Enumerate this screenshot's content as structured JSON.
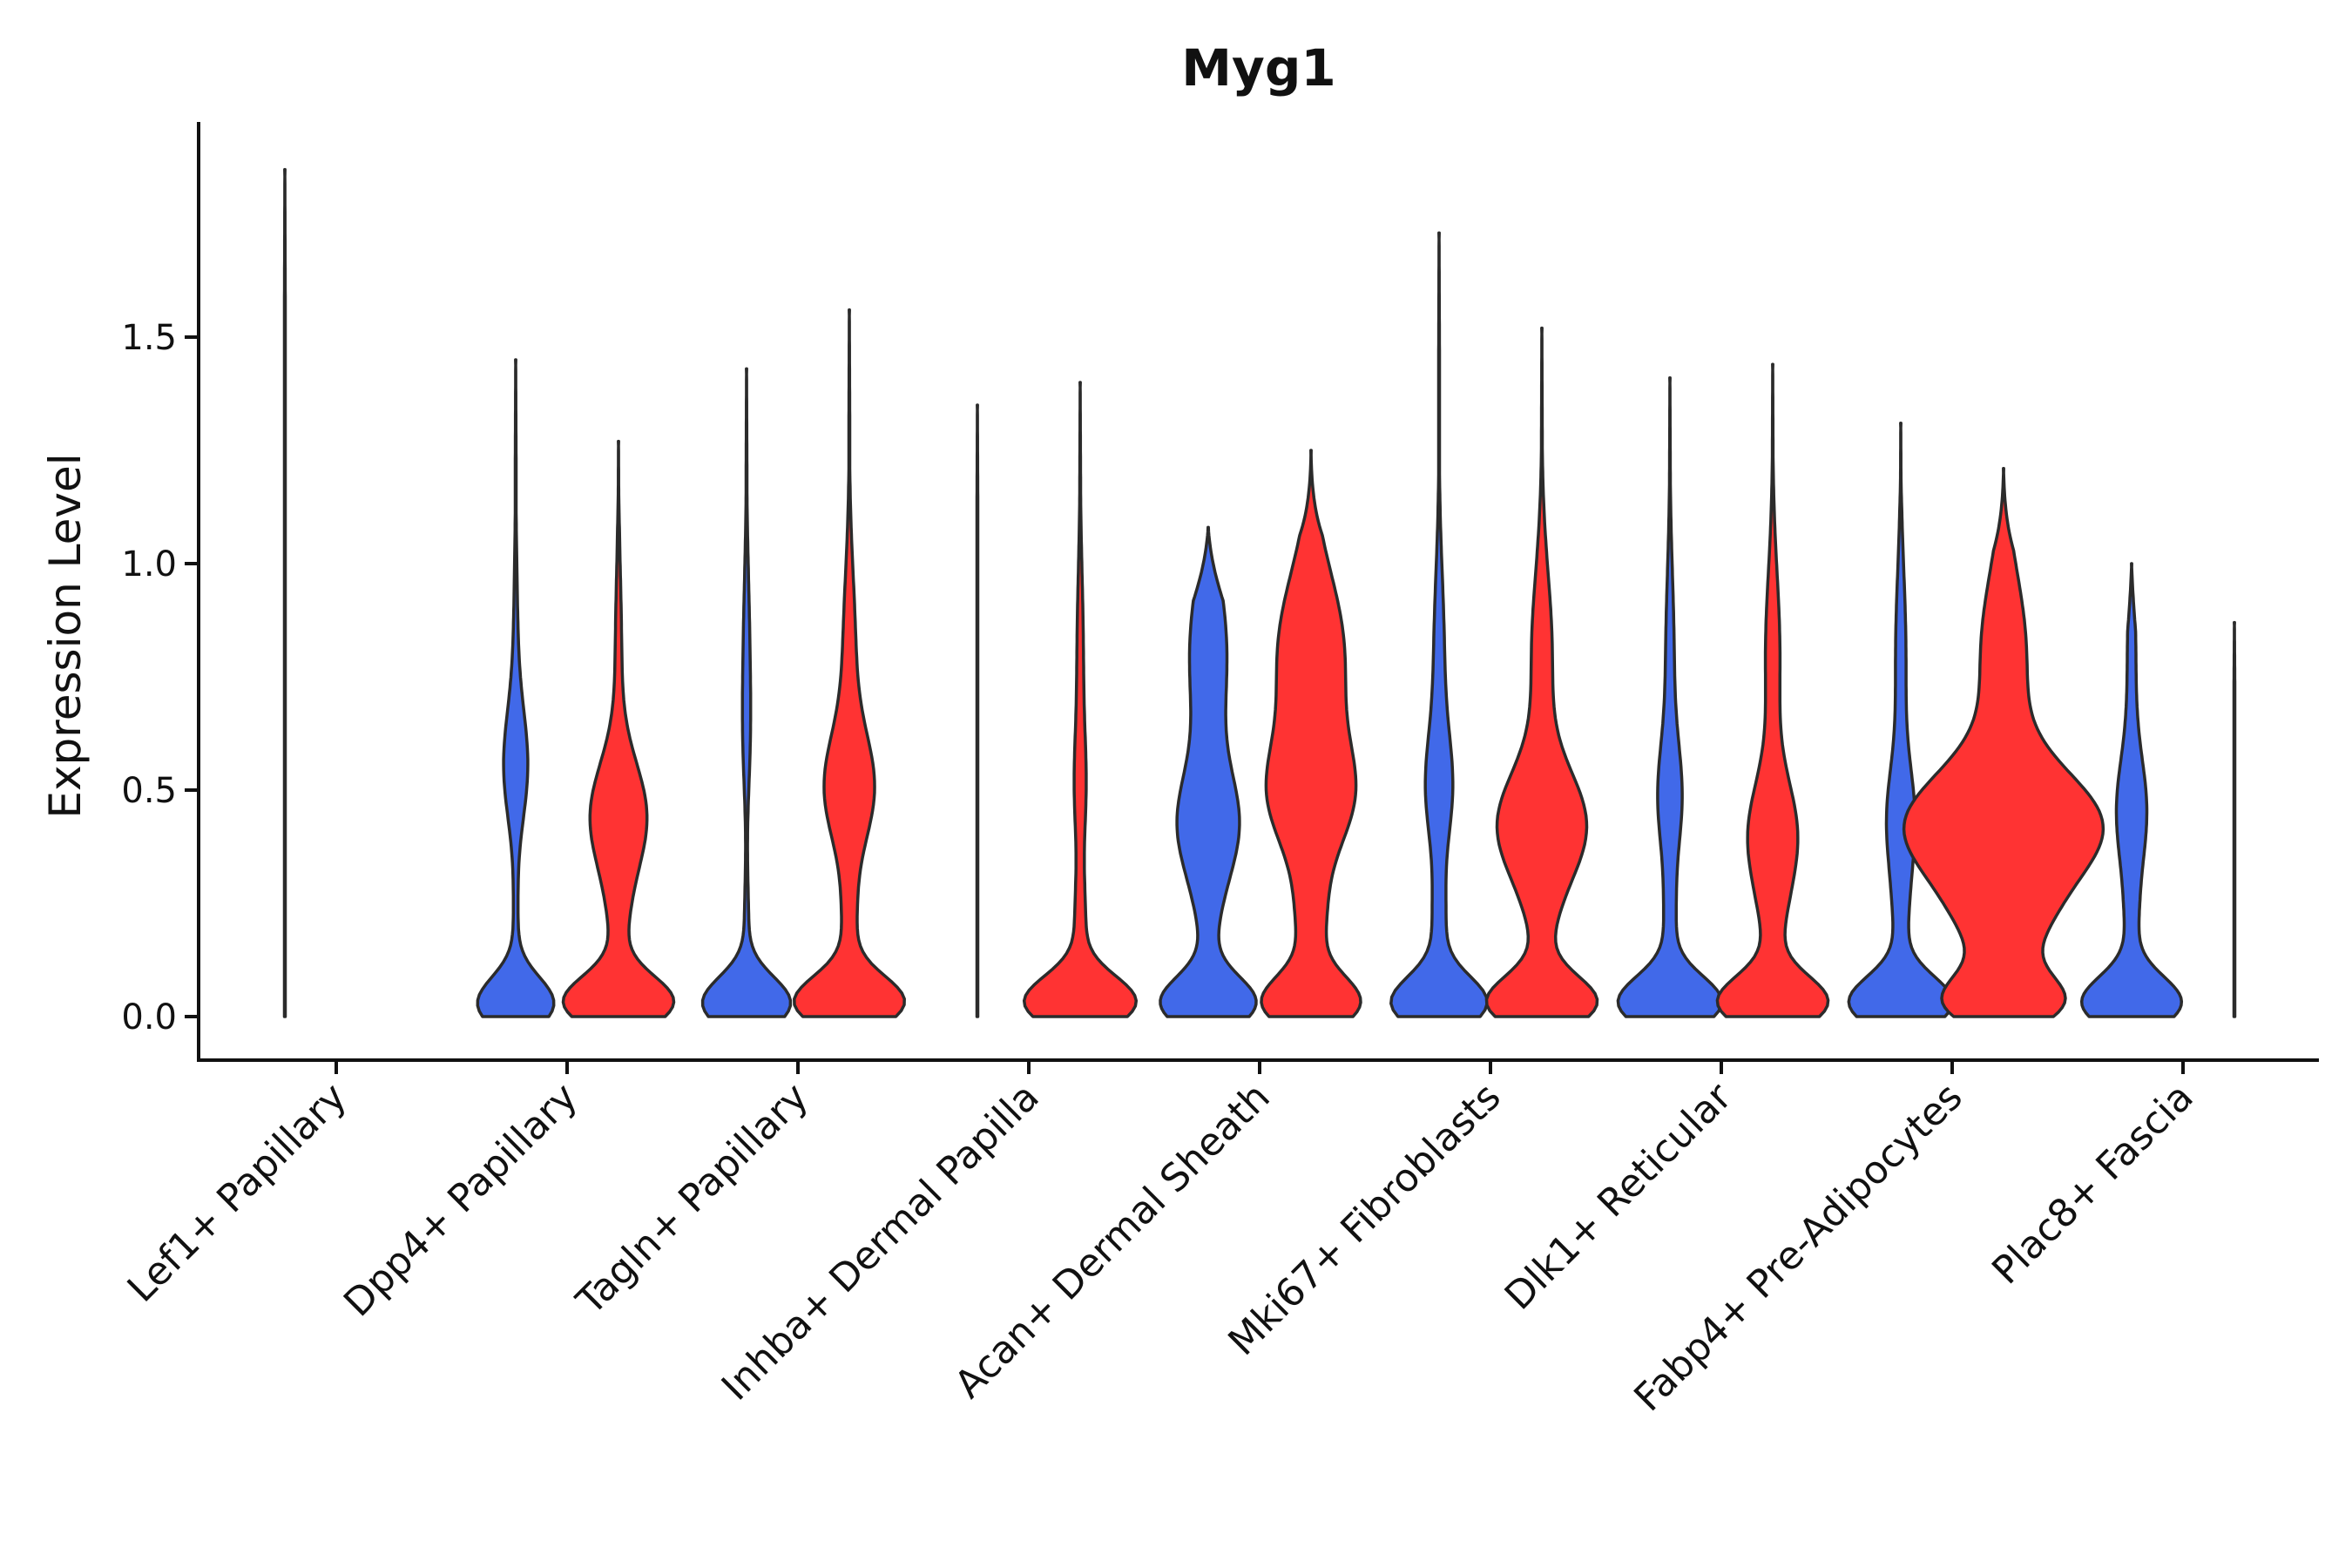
{
  "chart_data": {
    "type": "violin",
    "title": "Myg1",
    "xlabel": "",
    "ylabel": "Expression Level",
    "ylim": [
      -0.09,
      1.97
    ],
    "yticks": [
      "0.0",
      "0.5",
      "1.0",
      "1.5"
    ],
    "ytick_values": [
      0,
      0.5,
      1.0,
      1.5
    ],
    "colors": {
      "blue": "#4169E9",
      "red": "#FF3333",
      "outline": "#2b2b2b"
    },
    "categories": [
      "Lef1+ Papillary",
      "Dpp4+ Papillary",
      "Tagln+ Papillary",
      "Inhba+ Dermal Papilla",
      "Acan+ Dermal Sheath",
      "Mki67+ Fibroblasts",
      "Dlk1+ Reticular",
      "Fabp4+ Pre-Adipocytes",
      "Plac8+ Fascia"
    ],
    "series": [
      {
        "name": "blue",
        "color": "#4169E9",
        "violins": [
          {
            "max": 1.87,
            "base": 0.003,
            "low": 0,
            "mode": 0,
            "mid": 0,
            "mid_y": 0.5,
            "upper": 0
          },
          {
            "max": 1.45,
            "base": 0.09,
            "low": 0.3,
            "mode": 0.02,
            "mid": 0.11,
            "mid_y": 0.55,
            "upper": 0.02
          },
          {
            "max": 1.43,
            "base": 0.1,
            "low": 0.35,
            "mode": 0.02,
            "mid": 0.02,
            "mid_y": 0.6,
            "upper": 0.03
          },
          {
            "max": 1.35,
            "base": 0.003,
            "low": 0,
            "mode": 0,
            "mid": 0,
            "mid_y": 0.5,
            "upper": 0
          },
          {
            "max": 1.08,
            "base": 0.1,
            "low": 0.38,
            "mode": 0.05,
            "mid": 0.28,
            "mid_y": 0.42,
            "upper": 0.18
          },
          {
            "max": 1.73,
            "base": 0.1,
            "low": 0.38,
            "mode": 0.06,
            "mid": 0.12,
            "mid_y": 0.5,
            "upper": 0.05
          },
          {
            "max": 1.41,
            "base": 0.1,
            "low": 0.42,
            "mode": 0.05,
            "mid": 0.11,
            "mid_y": 0.48,
            "upper": 0.04
          },
          {
            "max": 1.31,
            "base": 0.1,
            "low": 0.42,
            "mode": 0.05,
            "mid": 0.13,
            "mid_y": 0.43,
            "upper": 0.05
          },
          {
            "max": 1.0,
            "base": 0.1,
            "low": 0.4,
            "mode": 0.05,
            "mid": 0.14,
            "mid_y": 0.45,
            "upper": 0.04
          }
        ]
      },
      {
        "name": "red",
        "color": "#FF3333",
        "violins": [
          null,
          {
            "max": 1.27,
            "base": 0.1,
            "low": 0.45,
            "mode": 0.06,
            "mid": 0.27,
            "mid_y": 0.44,
            "upper": 0.03
          },
          {
            "max": 1.56,
            "base": 0.1,
            "low": 0.45,
            "mode": 0.06,
            "mid": 0.23,
            "mid_y": 0.5,
            "upper": 0.06
          },
          {
            "max": 1.4,
            "base": 0.1,
            "low": 0.46,
            "mode": 0.05,
            "mid": 0.05,
            "mid_y": 0.5,
            "upper": 0.03
          },
          {
            "max": 1.25,
            "base": 0.1,
            "low": 0.38,
            "mode": 0.12,
            "mid": 0.36,
            "mid_y": 0.48,
            "upper": 0.32
          },
          {
            "max": 1.52,
            "base": 0.1,
            "low": 0.45,
            "mode": 0.06,
            "mid": 0.42,
            "mid_y": 0.42,
            "upper": 0.1
          },
          {
            "max": 1.44,
            "base": 0.1,
            "low": 0.45,
            "mode": 0.06,
            "mid": 0.23,
            "mid_y": 0.4,
            "upper": 0.07
          },
          {
            "max": 1.21,
            "base": 0.1,
            "low": 0.45,
            "mode": 0.28,
            "mid": 0.92,
            "mid_y": 0.42,
            "upper": 0.22
          },
          {
            "max": 0.87,
            "base": 0.003,
            "low": 0,
            "mode": 0,
            "mid": 0,
            "mid_y": 0.5,
            "upper": 0
          }
        ]
      }
    ]
  }
}
